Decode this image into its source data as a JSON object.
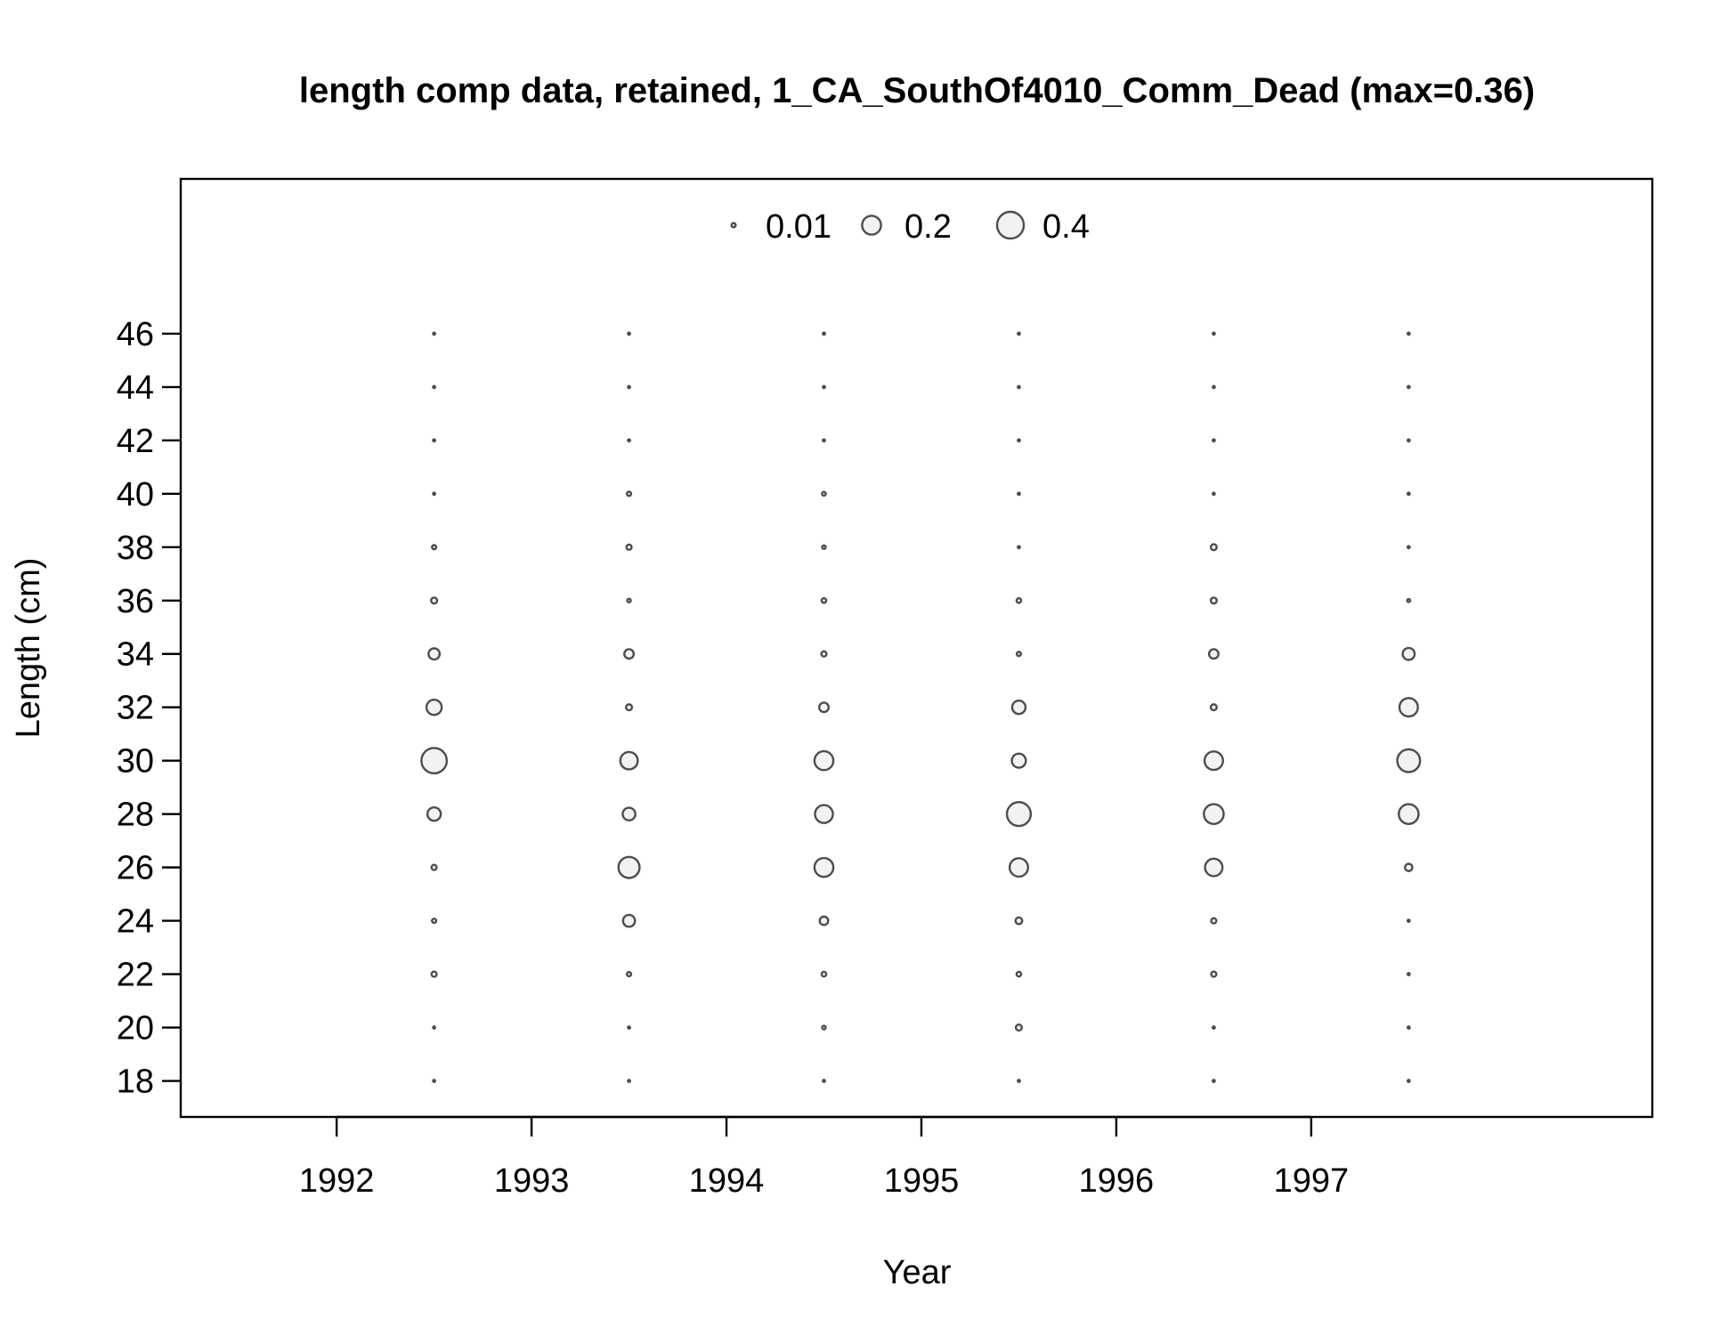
{
  "chart_data": {
    "type": "scatter",
    "title": "length comp data, retained, 1_CA_SouthOf4010_Comm_Dead (max=0.36)",
    "xlabel": "Year",
    "ylabel": "Length (cm)",
    "xlim": [
      1991.2,
      1998.75
    ],
    "ylim": [
      16.65,
      51.8
    ],
    "x_ticks": [
      1992,
      1993,
      1994,
      1995,
      1996,
      1997
    ],
    "y_ticks": [
      18,
      20,
      22,
      24,
      26,
      28,
      30,
      32,
      34,
      36,
      38,
      40,
      42,
      44,
      46
    ],
    "size_scale_max": 0.4,
    "legend": {
      "placement": "top-center",
      "entries": [
        {
          "label": "0.01",
          "value": 0.01
        },
        {
          "label": "0.2",
          "value": 0.2
        },
        {
          "label": "0.4",
          "value": 0.4
        }
      ]
    },
    "series": [
      {
        "x": 1992.5,
        "lengths": [
          18,
          20,
          22,
          24,
          26,
          28,
          30,
          32,
          34,
          36,
          38,
          40,
          42,
          44,
          46
        ],
        "values": [
          0.001,
          0.001,
          0.015,
          0.01,
          0.015,
          0.1,
          0.36,
          0.13,
          0.07,
          0.02,
          0.01,
          0.001,
          0.001,
          0.001,
          0.001
        ]
      },
      {
        "x": 1993.5,
        "lengths": [
          18,
          20,
          22,
          24,
          26,
          28,
          30,
          32,
          34,
          36,
          38,
          40,
          42,
          44,
          46
        ],
        "values": [
          0.001,
          0.001,
          0.01,
          0.08,
          0.25,
          0.09,
          0.17,
          0.02,
          0.05,
          0.007,
          0.015,
          0.01,
          0.001,
          0.001,
          0.001
        ]
      },
      {
        "x": 1994.5,
        "lengths": [
          18,
          20,
          22,
          24,
          26,
          28,
          30,
          32,
          34,
          36,
          38,
          40,
          42,
          44,
          46
        ],
        "values": [
          0.001,
          0.007,
          0.012,
          0.04,
          0.2,
          0.18,
          0.2,
          0.05,
          0.015,
          0.012,
          0.007,
          0.008,
          0.001,
          0.001,
          0.001
        ]
      },
      {
        "x": 1995.5,
        "lengths": [
          18,
          20,
          22,
          24,
          26,
          28,
          30,
          32,
          34,
          36,
          38,
          40,
          42,
          44,
          46
        ],
        "values": [
          0.001,
          0.02,
          0.012,
          0.025,
          0.19,
          0.32,
          0.11,
          0.1,
          0.01,
          0.012,
          0.001,
          0.001,
          0.001,
          0.001,
          0.001
        ]
      },
      {
        "x": 1996.5,
        "lengths": [
          18,
          20,
          22,
          24,
          26,
          28,
          30,
          32,
          34,
          36,
          38,
          40,
          42,
          44,
          46
        ],
        "values": [
          0.001,
          0.001,
          0.015,
          0.015,
          0.17,
          0.22,
          0.19,
          0.02,
          0.05,
          0.02,
          0.02,
          0.001,
          0.001,
          0.001,
          0.001
        ]
      },
      {
        "x": 1997.5,
        "lengths": [
          18,
          20,
          22,
          24,
          26,
          28,
          30,
          32,
          34,
          36,
          38,
          40,
          42,
          44,
          46
        ],
        "values": [
          0.001,
          0.001,
          0.001,
          0.002,
          0.03,
          0.22,
          0.29,
          0.19,
          0.08,
          0.005,
          0.002,
          0.001,
          0.001,
          0.001,
          0.001
        ]
      }
    ]
  }
}
